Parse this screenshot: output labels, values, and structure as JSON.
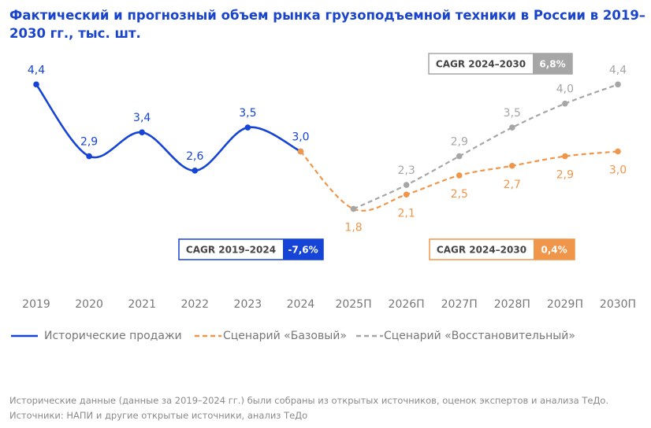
{
  "chart_data": {
    "type": "line",
    "title": "Фактический и прогнозный объем рынка грузоподъемной техники в России в 2019–2030 гг., тыс. шт.",
    "categories": [
      "2019",
      "2020",
      "2021",
      "2022",
      "2023",
      "2024",
      "2025П",
      "2026П",
      "2027П",
      "2028П",
      "2029П",
      "2030П"
    ],
    "ylim": [
      0,
      4.8
    ],
    "series": [
      {
        "name": "Исторические продажи",
        "color": "#1544d6",
        "dashed": false,
        "values": [
          4.4,
          2.9,
          3.4,
          2.6,
          3.5,
          3.0,
          null,
          null,
          null,
          null,
          null,
          null
        ],
        "value_labels": [
          "4,4",
          "2,9",
          "3,4",
          "2,6",
          "3,5",
          "3,0",
          null,
          null,
          null,
          null,
          null,
          null
        ]
      },
      {
        "name": "Сценарий «Базовый»",
        "color": "#f0964a",
        "dashed": true,
        "values": [
          null,
          null,
          null,
          null,
          null,
          3.0,
          1.8,
          2.1,
          2.5,
          2.7,
          2.9,
          3.0
        ],
        "value_labels": [
          null,
          null,
          null,
          null,
          null,
          null,
          "1,8",
          "2,1",
          "2,5",
          "2,7",
          "2,9",
          "3,0"
        ]
      },
      {
        "name": "Сценарий «Восстановительный»",
        "color": "#a6a6a6",
        "dashed": true,
        "values": [
          null,
          null,
          null,
          null,
          null,
          null,
          1.8,
          2.3,
          2.9,
          3.5,
          4.0,
          4.4
        ],
        "value_labels": [
          null,
          null,
          null,
          null,
          null,
          null,
          null,
          "2,3",
          "2,9",
          "3,5",
          "4,0",
          "4,4"
        ]
      }
    ],
    "annotations": [
      {
        "text": "CAGR 2024–2030",
        "value": "6,8%",
        "color": "#a6a6a6"
      },
      {
        "text": "CAGR 2019–2024",
        "value": "-7,6%",
        "color": "#1544d6"
      },
      {
        "text": "CAGR 2024–2030",
        "value": "0,4%",
        "color": "#f0964a"
      }
    ],
    "notes": [
      "Исторические данные (данные за 2019–2024 гг.) были собраны из открытых источников, оценок экспертов и анализа ТеДо.",
      "Источники: НАПИ и другие открытые источники, анализ ТеДо"
    ]
  }
}
